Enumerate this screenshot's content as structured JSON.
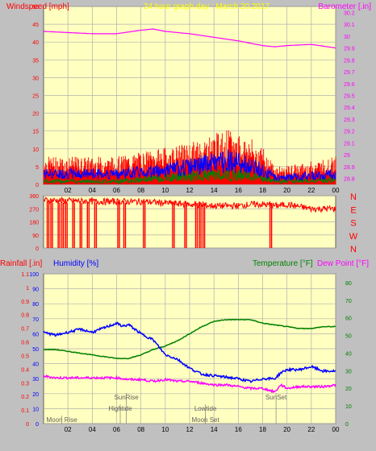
{
  "colors": {
    "background": "#c0c0c0",
    "plot_bg": "#ffffc0",
    "grid": "#b0b0b0",
    "wind": "#ff0000",
    "gust_blue": "#0000ff",
    "gust_green": "#008000",
    "barometer": "#ff00ff",
    "title": "#ffff00",
    "humidity": "#0000ff",
    "temperature": "#008000",
    "dewpoint": "#ff00ff",
    "rain": "#ff0000",
    "annotation": "#606060"
  },
  "chart_data": [
    {
      "type": "line",
      "title": "24 hour graph day : March 20 2017",
      "ylabel_left": "Windspeed [mph]",
      "ylabel_right": "Barometer [.in]",
      "x_ticks": [
        "02",
        "04",
        "06",
        "08",
        "10",
        "12",
        "14",
        "16",
        "18",
        "20",
        "22",
        "00"
      ],
      "x_range_hours": [
        0,
        24
      ],
      "y_left_ticks": [
        "0",
        "5",
        "10",
        "15",
        "20",
        "25",
        "30",
        "35",
        "40",
        "45",
        "50"
      ],
      "y_left_range": [
        0,
        50
      ],
      "y_right_ticks": [
        "28.8",
        "28.9",
        "29",
        "29.1",
        "29.2",
        "29.3",
        "29.4",
        "29.5",
        "29.6",
        "29.7",
        "29.8",
        "29.9",
        "30",
        "30.1",
        "30.2"
      ],
      "y_right_range": [
        28.75,
        30.25
      ],
      "series": [
        {
          "key": "barometer",
          "axis": "right",
          "x": [
            0,
            2,
            4,
            6,
            8,
            9,
            10,
            12,
            14,
            16,
            18,
            19,
            20,
            22,
            24
          ],
          "y": [
            30.04,
            30.03,
            30.02,
            30.02,
            30.05,
            30.06,
            30.04,
            30.02,
            29.99,
            29.96,
            29.92,
            29.91,
            29.92,
            29.93,
            29.9
          ]
        },
        {
          "key": "wind_gust",
          "axis": "left",
          "x": [
            0,
            2,
            4,
            6,
            8,
            10,
            12,
            13,
            14,
            15,
            16,
            17,
            18,
            19,
            20,
            22,
            24
          ],
          "y": [
            6,
            6,
            6,
            6,
            7,
            8,
            9,
            10,
            11,
            12,
            11,
            10,
            8,
            4,
            4,
            5,
            6
          ]
        },
        {
          "key": "wind_avg",
          "axis": "left",
          "x": [
            0,
            2,
            4,
            6,
            8,
            10,
            12,
            14,
            15,
            16,
            17,
            18,
            19,
            20,
            22,
            24
          ],
          "y": [
            3,
            3,
            3,
            3,
            3.5,
            4,
            5,
            6,
            7,
            6,
            5,
            4,
            2,
            2,
            2.5,
            3
          ]
        },
        {
          "key": "wind_low",
          "axis": "left",
          "x": [
            0,
            2,
            4,
            6,
            8,
            10,
            12,
            14,
            16,
            18,
            19,
            20,
            22,
            24
          ],
          "y": [
            1,
            1,
            1,
            1,
            1.5,
            2,
            2.5,
            3,
            3,
            2,
            1,
            1,
            1,
            1.5
          ]
        }
      ]
    },
    {
      "type": "line",
      "ylabel_left_ticks": [
        "0",
        "90",
        "180",
        "270",
        "360"
      ],
      "y_range": [
        0,
        360
      ],
      "right_labels": [
        "N",
        "W",
        "S",
        "E",
        "N"
      ],
      "x_range_hours": [
        0,
        24
      ],
      "series": [
        {
          "key": "wind_direction",
          "x": [
            0,
            4,
            8,
            10,
            12,
            14,
            16,
            17,
            18,
            19,
            20,
            22,
            24
          ],
          "y": [
            330,
            320,
            320,
            310,
            300,
            290,
            290,
            300,
            300,
            290,
            300,
            270,
            270
          ]
        }
      ],
      "dropouts_hours": [
        0.3,
        0.6,
        1.2,
        1.5,
        1.8,
        2.4,
        3.0,
        3.6,
        4.2,
        6.1,
        6.6,
        8.2,
        10.6,
        11.6,
        12.5,
        12.8,
        13.1,
        18.6
      ]
    },
    {
      "type": "line",
      "legend": {
        "rain": "Rainfall [.in]",
        "humidity": "Humidity [%]",
        "temperature": "Temperature [°F]",
        "dewpoint": "Dew Point [°F]"
      },
      "x_ticks": [
        "02",
        "04",
        "06",
        "08",
        "10",
        "12",
        "14",
        "16",
        "18",
        "20",
        "22",
        "00"
      ],
      "x_range_hours": [
        0,
        24
      ],
      "y_humidity_ticks": [
        "0",
        "10",
        "20",
        "30",
        "40",
        "50",
        "60",
        "70",
        "80",
        "90",
        "100"
      ],
      "y_humidity_range": [
        0,
        100
      ],
      "y_rain_ticks": [
        "0",
        "0.1",
        "0.2",
        "0.3",
        "0.4",
        "0.5",
        "0.6",
        "0.7",
        "0.8",
        "0.9",
        "1",
        "1.1"
      ],
      "y_rain_range": [
        0,
        1.1
      ],
      "y_temp_ticks": [
        "0",
        "10",
        "20",
        "30",
        "40",
        "50",
        "60",
        "70",
        "80"
      ],
      "y_temp_range": [
        0,
        85
      ],
      "series": [
        {
          "key": "humidity",
          "axis": "humidity",
          "x": [
            0,
            1,
            2,
            3,
            4,
            5,
            6,
            6.5,
            7,
            8,
            9,
            10,
            11,
            12,
            13,
            14,
            15,
            16,
            17,
            18,
            19,
            19.5,
            20,
            21,
            22,
            23,
            24
          ],
          "y": [
            61,
            59,
            61,
            63,
            61,
            64,
            67,
            65,
            66,
            60,
            56,
            46,
            43,
            37,
            33,
            32,
            31,
            30,
            28,
            30,
            30,
            34,
            36,
            36,
            38,
            35,
            35
          ]
        },
        {
          "key": "temperature",
          "axis": "temp",
          "x": [
            0,
            1,
            2,
            3,
            4,
            5,
            6,
            7,
            8,
            9,
            10,
            11,
            12,
            13,
            14,
            15,
            16,
            17,
            18,
            19,
            20,
            21,
            22,
            23,
            24
          ],
          "y": [
            42,
            42,
            41,
            40,
            39,
            38,
            37,
            37,
            39,
            42,
            44,
            47,
            51,
            55,
            58,
            59,
            59,
            59,
            57,
            56,
            55,
            54,
            54,
            55,
            55
          ]
        },
        {
          "key": "dewpoint",
          "axis": "temp",
          "x": [
            0,
            1,
            2,
            3,
            4,
            5,
            6,
            7,
            8,
            9,
            10,
            11,
            12,
            13,
            14,
            15,
            16,
            17,
            18,
            18.5,
            19,
            19.5,
            20,
            21,
            22,
            23,
            24
          ],
          "y": [
            27,
            26,
            26,
            26,
            26,
            26,
            26,
            25,
            25,
            24,
            25,
            24,
            24,
            23,
            22,
            22,
            21,
            20,
            20,
            19,
            18,
            22,
            20,
            21,
            21,
            21,
            22
          ]
        }
      ],
      "annotations": [
        {
          "text": "Moon Rise",
          "hour": 1.5,
          "level": 0
        },
        {
          "text": "SunRise",
          "hour": 6.8,
          "level": 2
        },
        {
          "text": "Hightide",
          "hour": 6.3,
          "level": 1
        },
        {
          "text": "Lowtide",
          "hour": 13.3,
          "level": 1
        },
        {
          "text": "Moon Set",
          "hour": 13.3,
          "level": 0
        },
        {
          "text": "SunSet",
          "hour": 19.1,
          "level": 2
        }
      ]
    }
  ]
}
